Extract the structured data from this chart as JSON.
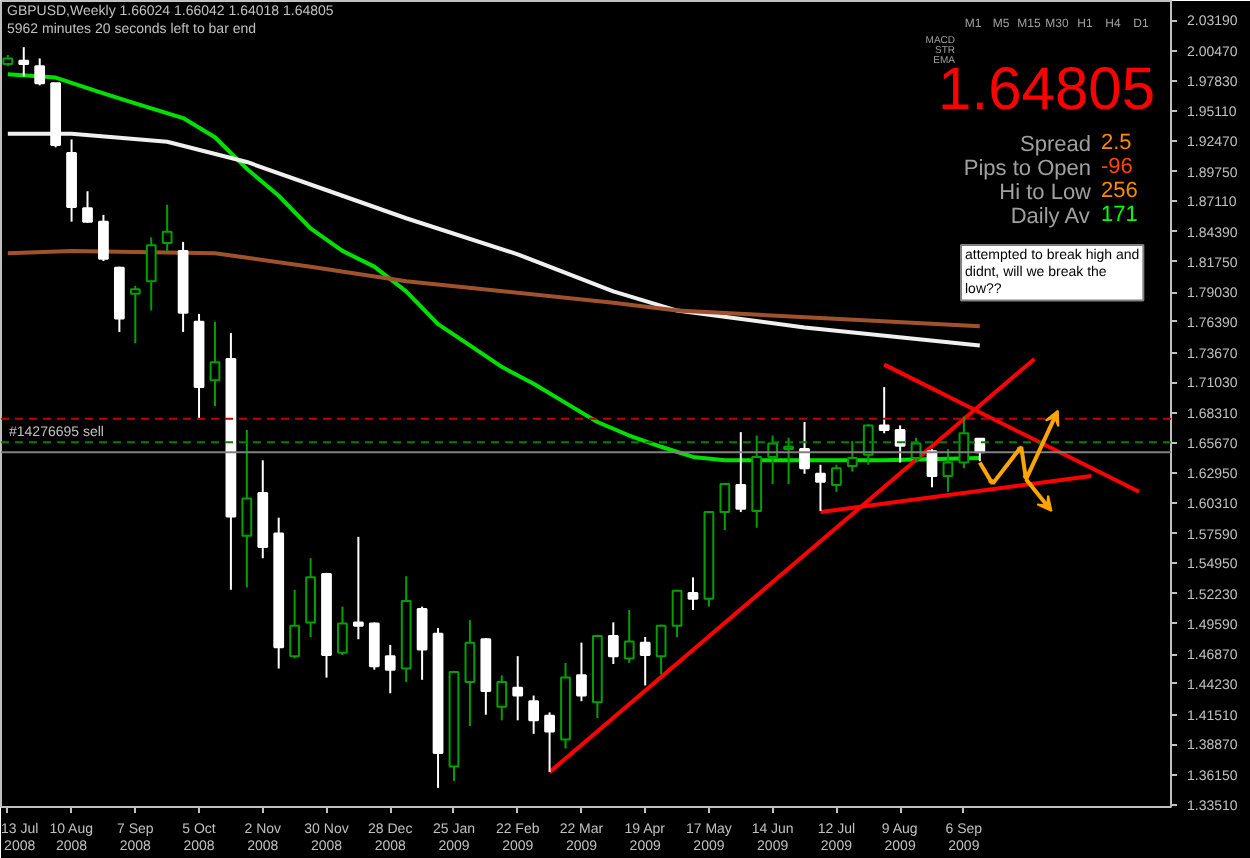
{
  "chart_data": {
    "type": "candlestick",
    "title": "GBPUSD,Weekly 1.66024 1.66042 1.64018 1.64805",
    "subtitle": "5962 minutes 20 seconds left to bar end",
    "x": [
      "2008-07-13",
      "2008-07-20",
      "2008-07-27",
      "2008-08-03",
      "2008-08-10",
      "2008-08-17",
      "2008-08-24",
      "2008-08-31",
      "2008-09-07",
      "2008-09-14",
      "2008-09-21",
      "2008-09-28",
      "2008-10-05",
      "2008-10-12",
      "2008-10-19",
      "2008-10-26",
      "2008-11-02",
      "2008-11-09",
      "2008-11-16",
      "2008-11-23",
      "2008-11-30",
      "2008-12-07",
      "2008-12-14",
      "2008-12-21",
      "2008-12-28",
      "2009-01-04",
      "2009-01-11",
      "2009-01-18",
      "2009-01-25",
      "2009-02-01",
      "2009-02-08",
      "2009-02-15",
      "2009-02-22",
      "2009-03-01",
      "2009-03-08",
      "2009-03-15",
      "2009-03-22",
      "2009-03-29",
      "2009-04-05",
      "2009-04-12",
      "2009-04-19",
      "2009-04-26",
      "2009-05-03",
      "2009-05-10",
      "2009-05-17",
      "2009-05-24",
      "2009-05-31",
      "2009-06-07",
      "2009-06-14",
      "2009-06-21",
      "2009-06-28",
      "2009-07-05",
      "2009-07-12",
      "2009-07-19",
      "2009-07-26",
      "2009-08-02",
      "2009-08-09",
      "2009-08-16",
      "2009-08-23",
      "2009-08-30",
      "2009-09-06",
      "2009-09-13"
    ],
    "ohlc": [
      [
        1.993,
        2.001,
        1.991,
        1.998
      ],
      [
        1.996,
        2.008,
        1.982,
        1.993
      ],
      [
        1.991,
        1.998,
        1.974,
        1.976
      ],
      [
        1.976,
        1.976,
        1.919,
        1.921
      ],
      [
        1.914,
        1.926,
        1.853,
        1.866
      ],
      [
        1.865,
        1.88,
        1.852,
        1.853
      ],
      [
        1.853,
        1.859,
        1.818,
        1.82
      ],
      [
        1.812,
        1.813,
        1.755,
        1.767
      ],
      [
        1.789,
        1.796,
        1.745,
        1.793
      ],
      [
        1.8,
        1.839,
        1.774,
        1.832
      ],
      [
        1.834,
        1.868,
        1.827,
        1.844
      ],
      [
        1.827,
        1.835,
        1.755,
        1.772
      ],
      [
        1.764,
        1.771,
        1.678,
        1.706
      ],
      [
        1.712,
        1.764,
        1.689,
        1.728
      ],
      [
        1.731,
        1.754,
        1.526,
        1.591
      ],
      [
        1.574,
        1.668,
        1.528,
        1.607
      ],
      [
        1.612,
        1.641,
        1.554,
        1.564
      ],
      [
        1.576,
        1.59,
        1.456,
        1.475
      ],
      [
        1.467,
        1.526,
        1.465,
        1.494
      ],
      [
        1.497,
        1.554,
        1.484,
        1.537
      ],
      [
        1.54,
        1.541,
        1.448,
        1.468
      ],
      [
        1.47,
        1.511,
        1.468,
        1.496
      ],
      [
        1.497,
        1.573,
        1.482,
        1.494
      ],
      [
        1.496,
        1.497,
        1.455,
        1.458
      ],
      [
        1.467,
        1.477,
        1.434,
        1.455
      ],
      [
        1.456,
        1.538,
        1.444,
        1.516
      ],
      [
        1.509,
        1.511,
        1.446,
        1.473
      ],
      [
        1.487,
        1.492,
        1.35,
        1.381
      ],
      [
        1.369,
        1.454,
        1.356,
        1.453
      ],
      [
        1.444,
        1.499,
        1.405,
        1.479
      ],
      [
        1.482,
        1.483,
        1.415,
        1.436
      ],
      [
        1.422,
        1.45,
        1.41,
        1.444
      ],
      [
        1.439,
        1.467,
        1.41,
        1.432
      ],
      [
        1.427,
        1.432,
        1.398,
        1.41
      ],
      [
        1.414,
        1.417,
        1.364,
        1.4
      ],
      [
        1.393,
        1.461,
        1.385,
        1.448
      ],
      [
        1.45,
        1.479,
        1.427,
        1.432
      ],
      [
        1.426,
        1.486,
        1.412,
        1.485
      ],
      [
        1.485,
        1.497,
        1.46,
        1.467
      ],
      [
        1.465,
        1.508,
        1.461,
        1.48
      ],
      [
        1.479,
        1.484,
        1.441,
        1.468
      ],
      [
        1.467,
        1.495,
        1.451,
        1.494
      ],
      [
        1.494,
        1.526,
        1.484,
        1.525
      ],
      [
        1.523,
        1.537,
        1.508,
        1.518
      ],
      [
        1.518,
        1.596,
        1.511,
        1.595
      ],
      [
        1.595,
        1.621,
        1.579,
        1.62
      ],
      [
        1.619,
        1.666,
        1.595,
        1.598
      ],
      [
        1.596,
        1.663,
        1.581,
        1.644
      ],
      [
        1.644,
        1.663,
        1.62,
        1.656
      ],
      [
        1.651,
        1.661,
        1.62,
        1.653
      ],
      [
        1.651,
        1.675,
        1.629,
        1.634
      ],
      [
        1.629,
        1.637,
        1.596,
        1.622
      ],
      [
        1.619,
        1.637,
        1.613,
        1.634
      ],
      [
        1.636,
        1.658,
        1.631,
        1.643
      ],
      [
        1.646,
        1.673,
        1.637,
        1.672
      ],
      [
        1.672,
        1.706,
        1.665,
        1.668
      ],
      [
        1.668,
        1.672,
        1.639,
        1.654
      ],
      [
        1.643,
        1.661,
        1.639,
        1.656
      ],
      [
        1.649,
        1.651,
        1.617,
        1.627
      ],
      [
        1.627,
        1.651,
        1.613,
        1.639
      ],
      [
        1.639,
        1.68,
        1.634,
        1.665
      ],
      [
        1.66024,
        1.66042,
        1.64018,
        1.64805
      ]
    ],
    "colors": [
      "#00a000",
      "#ffffff",
      "#ffffff",
      "#ffffff",
      "#ffffff",
      "#ffffff",
      "#ffffff",
      "#ffffff",
      "#00a000",
      "#00a000",
      "#00a000",
      "#ffffff",
      "#ffffff",
      "#00a000",
      "#ffffff",
      "#00a000",
      "#ffffff",
      "#ffffff",
      "#00a000",
      "#00a000",
      "#ffffff",
      "#00a000",
      "#ffffff",
      "#ffffff",
      "#ffffff",
      "#00a000",
      "#ffffff",
      "#ffffff",
      "#00a000",
      "#00a000",
      "#ffffff",
      "#00a000",
      "#ffffff",
      "#ffffff",
      "#ffffff",
      "#00a000",
      "#ffffff",
      "#00a000",
      "#ffffff",
      "#00a000",
      "#ffffff",
      "#00a000",
      "#00a000",
      "#ffffff",
      "#00a000",
      "#00a000",
      "#ffffff",
      "#00a000",
      "#00a000",
      "#00a000",
      "#ffffff",
      "#ffffff",
      "#00a000",
      "#00a000",
      "#00a000",
      "#ffffff",
      "#ffffff",
      "#00a000",
      "#ffffff",
      "#00a000",
      "#00a000",
      "#ffffff"
    ],
    "series": [
      {
        "type": "line",
        "color": "#00e000",
        "x": [
          "2008-07-13",
          "2008-08-03",
          "2008-08-24",
          "2008-09-07",
          "2008-09-28",
          "2008-10-12",
          "2008-10-26",
          "2008-11-09",
          "2008-11-23",
          "2008-12-07",
          "2008-12-21",
          "2009-01-04",
          "2009-01-18",
          "2009-02-01",
          "2009-02-15",
          "2009-03-01",
          "2009-03-15",
          "2009-03-29",
          "2009-04-12",
          "2009-04-26",
          "2009-05-10",
          "2009-05-24",
          "2009-06-28",
          "2009-08-02",
          "2009-09-13"
        ],
        "values": [
          1.984,
          1.981,
          1.967,
          1.958,
          1.945,
          1.928,
          1.9,
          1.876,
          1.847,
          1.827,
          1.813,
          1.791,
          1.762,
          1.743,
          1.724,
          1.709,
          1.692,
          1.675,
          1.663,
          1.653,
          1.644,
          1.641,
          1.641,
          1.641,
          1.643
        ]
      },
      {
        "type": "line",
        "color": "#f0f0f0",
        "x": [
          "2008-07-13",
          "2008-08-10",
          "2008-09-21",
          "2008-10-26",
          "2008-12-07",
          "2009-01-04",
          "2009-02-22",
          "2009-04-05",
          "2009-05-03",
          "2009-06-28",
          "2009-09-13"
        ],
        "values": [
          1.931,
          1.931,
          1.924,
          1.906,
          1.876,
          1.856,
          1.824,
          1.791,
          1.774,
          1.759,
          1.743
        ]
      },
      {
        "type": "line",
        "color": "#a0522d",
        "x": [
          "2008-07-13",
          "2008-08-10",
          "2008-10-12",
          "2008-11-23",
          "2009-01-04",
          "2009-04-05",
          "2009-05-03",
          "2009-09-13"
        ],
        "values": [
          1.825,
          1.827,
          1.825,
          1.813,
          1.8,
          1.781,
          1.774,
          1.76
        ]
      },
      {
        "type": "line",
        "color": "#ff0000",
        "x": [
          "2009-03-08",
          "2009-10-07"
        ],
        "values": [
          1.364,
          1.731
        ]
      },
      {
        "type": "line",
        "color": "#ff0000",
        "x": [
          "2009-08-02",
          "2009-11-22"
        ],
        "values": [
          1.726,
          1.613
        ]
      },
      {
        "type": "line",
        "color": "#ff0000",
        "x": [
          "2009-07-05",
          "2009-11-01"
        ],
        "values": [
          1.595,
          1.627
        ]
      }
    ],
    "xlim": [
      "2008-07-10",
      "2009-12-06"
    ],
    "ylim": [
      1.333,
      2.049
    ],
    "xticks": [
      {
        "value": "2008-07-13",
        "label": "13 Jul 2008"
      },
      {
        "value": "2008-08-10",
        "label": "10 Aug 2008"
      },
      {
        "value": "2008-09-07",
        "label": "7 Sep 2008"
      },
      {
        "value": "2008-10-05",
        "label": "5 Oct 2008"
      },
      {
        "value": "2008-11-02",
        "label": "2 Nov 2008"
      },
      {
        "value": "2008-11-30",
        "label": "30 Nov 2008"
      },
      {
        "value": "2008-12-28",
        "label": "28 Dec 2008"
      },
      {
        "value": "2009-01-25",
        "label": "25 Jan 2009"
      },
      {
        "value": "2009-02-22",
        "label": "22 Feb 2009"
      },
      {
        "value": "2009-03-22",
        "label": "22 Mar 2009"
      },
      {
        "value": "2009-04-19",
        "label": "19 Apr 2009"
      },
      {
        "value": "2009-05-17",
        "label": "17 May 2009"
      },
      {
        "value": "2009-06-14",
        "label": "14 Jun 2009"
      },
      {
        "value": "2009-07-12",
        "label": "12 Jul 2009"
      },
      {
        "value": "2009-08-09",
        "label": "9 Aug 2009"
      },
      {
        "value": "2009-09-06",
        "label": "6 Sep 2009"
      }
    ],
    "yticks": [
      {
        "value": 2.0319,
        "label": "2.03190"
      },
      {
        "value": 2.0047,
        "label": "2.00470"
      },
      {
        "value": 1.9783,
        "label": "1.97830"
      },
      {
        "value": 1.9511,
        "label": "1.95110"
      },
      {
        "value": 1.9247,
        "label": "1.92470"
      },
      {
        "value": 1.8975,
        "label": "1.89750"
      },
      {
        "value": 1.8711,
        "label": "1.87110"
      },
      {
        "value": 1.8439,
        "label": "1.84390"
      },
      {
        "value": 1.8175,
        "label": "1.81750"
      },
      {
        "value": 1.7903,
        "label": "1.79030"
      },
      {
        "value": 1.7639,
        "label": "1.76390"
      },
      {
        "value": 1.7367,
        "label": "1.73670"
      },
      {
        "value": 1.7103,
        "label": "1.71030"
      },
      {
        "value": 1.6831,
        "label": "1.68310"
      },
      {
        "value": 1.6567,
        "label": "1.65670"
      },
      {
        "value": 1.6295,
        "label": "1.62950"
      },
      {
        "value": 1.6031,
        "label": "1.60310"
      },
      {
        "value": 1.5759,
        "label": "1.57590"
      },
      {
        "value": 1.5495,
        "label": "1.54950"
      },
      {
        "value": 1.5223,
        "label": "1.52230"
      },
      {
        "value": 1.4959,
        "label": "1.49590"
      },
      {
        "value": 1.4687,
        "label": "1.46870"
      },
      {
        "value": 1.4423,
        "label": "1.44230"
      },
      {
        "value": 1.4151,
        "label": "1.41510"
      },
      {
        "value": 1.3887,
        "label": "1.38870"
      },
      {
        "value": 1.3615,
        "label": "1.36150"
      },
      {
        "value": 1.3351,
        "label": "1.33510"
      }
    ],
    "ref_lines": [
      {
        "axis": "y",
        "value": 1.678,
        "color": "#c00000",
        "line_style": "dashed"
      },
      {
        "axis": "y",
        "value": 1.657,
        "color": "#008000",
        "line_style": "dashed",
        "label": "#14276695 sell"
      },
      {
        "axis": "y",
        "value": 1.64805,
        "color": "#808080"
      }
    ],
    "annotations": [
      "attempted to break high and didnt, will we break the low??",
      "1.64805",
      "Spread 2.5",
      "Pips to Open -96",
      "Hi to Low 256",
      "Daily Av 171",
      "M1 M5 M15 M30 H1 H4 D1",
      "MACD STR EMA"
    ]
  }
}
